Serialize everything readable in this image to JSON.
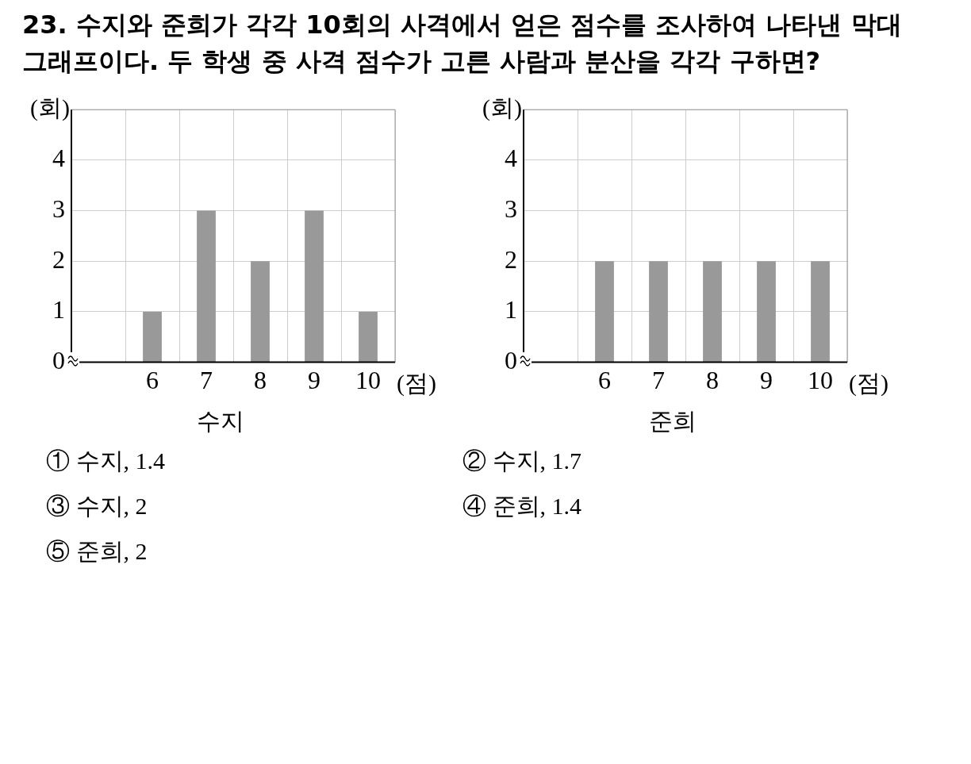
{
  "chart_data": [
    {
      "type": "bar",
      "title": "수지",
      "xlabel": "(점)",
      "ylabel": "(회)",
      "categories": [
        null,
        "6",
        "7",
        "8",
        "9",
        "10"
      ],
      "values": [
        null,
        1,
        3,
        2,
        3,
        1
      ],
      "color": "#999999",
      "ylim": [
        0,
        5
      ],
      "yticks": [
        0,
        1,
        2,
        3,
        4,
        {
          "value": 5,
          "label": null
        }
      ],
      "grid": true,
      "annotations": [
        "23. 수지와 준희가 각각 10회의 사격에서 얻은 점수를 조사하여 나타낸 막대그래프이다. 두 학생 중 사격 점수가 고른 사람과 분산을 각각 구하면?",
        "① 수지, 1.4",
        "② 수지, 1.7",
        "③ 수지, 2",
        "④ 준희, 1.4",
        "⑤ 준희, 2"
      ]
    },
    {
      "type": "bar",
      "title": "준희",
      "xlabel": "(점)",
      "ylabel": "(회)",
      "categories": [
        null,
        "6",
        "7",
        "8",
        "9",
        "10"
      ],
      "values": [
        null,
        2,
        2,
        2,
        2,
        2
      ],
      "color": "#999999",
      "ylim": [
        0,
        5
      ],
      "yticks": [
        0,
        1,
        2,
        3,
        4,
        {
          "value": 5,
          "label": null
        }
      ],
      "grid": true
    }
  ]
}
